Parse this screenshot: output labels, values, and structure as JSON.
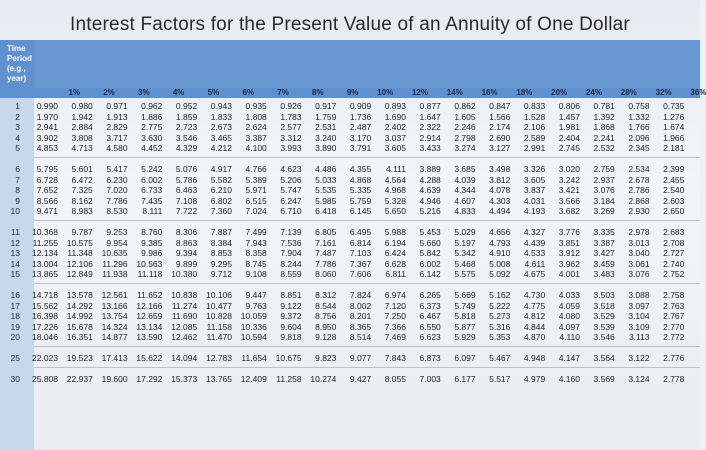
{
  "title": "Interest Factors for the Present Value of an Annuity of One Dollar",
  "header": {
    "label_lines": [
      "Time",
      "Period",
      "(e.g.,",
      "year)"
    ],
    "rates": [
      "1%",
      "2%",
      "3%",
      "4%",
      "5%",
      "6%",
      "7%",
      "8%",
      "9%",
      "10%",
      "12%",
      "14%",
      "16%",
      "18%",
      "20%",
      "24%",
      "28%",
      "32%",
      "36%"
    ]
  },
  "table": {
    "groups": [
      [
        {
          "period": "1",
          "values": [
            "0.990",
            "0.980",
            "0.971",
            "0.962",
            "0.952",
            "0.943",
            "0.935",
            "0.926",
            "0.917",
            "0.909",
            "0.893",
            "0.877",
            "0.862",
            "0.847",
            "0.833",
            "0.806",
            "0.781",
            "0.758",
            "0.735"
          ]
        },
        {
          "period": "2",
          "values": [
            "1.970",
            "1.942",
            "1.913",
            "1.886",
            "1.859",
            "1.833",
            "1.808",
            "1.783",
            "1.759",
            "1.736",
            "1.690",
            "1.647",
            "1.605",
            "1.566",
            "1.528",
            "1.457",
            "1.392",
            "1.332",
            "1.276"
          ]
        },
        {
          "period": "3",
          "values": [
            "2.941",
            "2.884",
            "2.829",
            "2.775",
            "2.723",
            "2.673",
            "2.624",
            "2.577",
            "2.531",
            "2.487",
            "2.402",
            "2.322",
            "2.246",
            "2.174",
            "2.106",
            "1.981",
            "1.868",
            "1.766",
            "1.674"
          ]
        },
        {
          "period": "4",
          "values": [
            "3.902",
            "3.808",
            "3.717",
            "3.630",
            "3.546",
            "3.465",
            "3.387",
            "3.312",
            "3.240",
            "3.170",
            "3.037",
            "2.914",
            "2.798",
            "2.690",
            "2.589",
            "2.404",
            "2.241",
            "2.096",
            "1.966"
          ]
        },
        {
          "period": "5",
          "values": [
            "4.853",
            "4.713",
            "4.580",
            "4.452",
            "4.329",
            "4.212",
            "4.100",
            "3.993",
            "3.890",
            "3.791",
            "3.605",
            "3.433",
            "3.274",
            "3.127",
            "2.991",
            "2.745",
            "2.532",
            "2.345",
            "2.181"
          ]
        }
      ],
      [
        {
          "period": "6",
          "values": [
            "5.795",
            "5.601",
            "5.417",
            "5.242",
            "5.076",
            "4.917",
            "4.766",
            "4.623",
            "4.486",
            "4.355",
            "4.111",
            "3.889",
            "3.685",
            "3.498",
            "3.326",
            "3.020",
            "2.759",
            "2.534",
            "2.399"
          ]
        },
        {
          "period": "7",
          "values": [
            "6.728",
            "6.472",
            "6.230",
            "6.002",
            "5.786",
            "5.582",
            "5.389",
            "5.206",
            "5.033",
            "4.868",
            "4.564",
            "4.288",
            "4.039",
            "3.812",
            "3.605",
            "3.242",
            "2.937",
            "2.678",
            "2.455"
          ]
        },
        {
          "period": "8",
          "values": [
            "7.652",
            "7.325",
            "7.020",
            "6.733",
            "6.463",
            "6.210",
            "5.971",
            "5.747",
            "5.535",
            "5.335",
            "4.968",
            "4.639",
            "4.344",
            "4.078",
            "3.837",
            "3.421",
            "3.076",
            "2.786",
            "2.540"
          ]
        },
        {
          "period": "9",
          "values": [
            "8.566",
            "8.162",
            "7.786",
            "7.435",
            "7.108",
            "6.802",
            "6.515",
            "6.247",
            "5.985",
            "5.759",
            "5.328",
            "4.946",
            "4.607",
            "4.303",
            "4.031",
            "3.566",
            "3.184",
            "2.868",
            "2.603"
          ]
        },
        {
          "period": "10",
          "values": [
            "9.471",
            "8.983",
            "8.530",
            "8.111",
            "7.722",
            "7.360",
            "7.024",
            "6.710",
            "6.418",
            "6.145",
            "5.650",
            "5.216",
            "4.833",
            "4.494",
            "4.193",
            "3.682",
            "3.269",
            "2.930",
            "2.650"
          ]
        }
      ],
      [
        {
          "period": "11",
          "values": [
            "10.368",
            "9.787",
            "9.253",
            "8.760",
            "8.306",
            "7.887",
            "7.499",
            "7.139",
            "6.805",
            "6.495",
            "5.988",
            "5.453",
            "5.029",
            "4.656",
            "4.327",
            "3.776",
            "3.335",
            "2.978",
            "2.683"
          ]
        },
        {
          "period": "12",
          "values": [
            "11.255",
            "10.575",
            "9.954",
            "9.385",
            "8.863",
            "8.384",
            "7.943",
            "7.536",
            "7.161",
            "6.814",
            "6.194",
            "5.660",
            "5.197",
            "4.793",
            "4.439",
            "3.851",
            "3.387",
            "3.013",
            "2.708"
          ]
        },
        {
          "period": "13",
          "values": [
            "12.134",
            "11.348",
            "10.635",
            "9.986",
            "9.394",
            "8.853",
            "8.358",
            "7.904",
            "7.487",
            "7.103",
            "6.424",
            "5.842",
            "5.342",
            "4.910",
            "4.533",
            "3.912",
            "3.427",
            "3.040",
            "2.727"
          ]
        },
        {
          "period": "14",
          "values": [
            "13.004",
            "12.106",
            "11.296",
            "10.563",
            "9.899",
            "9.295",
            "8.745",
            "8.244",
            "7.786",
            "7.367",
            "6.628",
            "6.002",
            "5.468",
            "5.008",
            "4.611",
            "3.962",
            "3.459",
            "3.061",
            "2.740"
          ]
        },
        {
          "period": "15",
          "values": [
            "13.865",
            "12.849",
            "11.938",
            "11.118",
            "10.380",
            "9.712",
            "9.108",
            "8.559",
            "8.060",
            "7.606",
            "6.811",
            "6.142",
            "5.575",
            "5.092",
            "4.675",
            "4.001",
            "3.483",
            "3.076",
            "2.752"
          ]
        }
      ],
      [
        {
          "period": "16",
          "values": [
            "14.718",
            "13.578",
            "12.561",
            "11.652",
            "10.838",
            "10.106",
            "9.447",
            "8.851",
            "8.312",
            "7.824",
            "6.974",
            "6.265",
            "5.669",
            "5.162",
            "4.730",
            "4.033",
            "3.503",
            "3.088",
            "2.758"
          ]
        },
        {
          "period": "17",
          "values": [
            "15.562",
            "14.292",
            "13.166",
            "12.166",
            "11.274",
            "10.477",
            "9.763",
            "9.122",
            "8.544",
            "8.002",
            "7.120",
            "6.373",
            "5.749",
            "5.222",
            "4.775",
            "4.059",
            "3.518",
            "3.097",
            "2.763"
          ]
        },
        {
          "period": "18",
          "values": [
            "16.398",
            "14.992",
            "13.754",
            "12.659",
            "11.690",
            "10.828",
            "10.059",
            "9.372",
            "8.756",
            "8.201",
            "7.250",
            "6.467",
            "5.818",
            "5.273",
            "4.812",
            "4.080",
            "3.529",
            "3.104",
            "2.767"
          ]
        },
        {
          "period": "19",
          "values": [
            "17.226",
            "15.678",
            "14.324",
            "13.134",
            "12.085",
            "11.158",
            "10.336",
            "9.604",
            "8.950",
            "8.365",
            "7.366",
            "6.550",
            "5.877",
            "5.316",
            "4.844",
            "4.097",
            "3.539",
            "3.109",
            "2.770"
          ]
        },
        {
          "period": "20",
          "values": [
            "18.046",
            "16.351",
            "14.877",
            "13.590",
            "12.462",
            "11.470",
            "10.594",
            "9.818",
            "9.128",
            "8.514",
            "7.469",
            "6.623",
            "5.929",
            "5.353",
            "4.870",
            "4.110",
            "3.546",
            "3.113",
            "2.772"
          ]
        }
      ],
      [
        {
          "period": "25",
          "values": [
            "22.023",
            "19.523",
            "17.413",
            "15.622",
            "14.094",
            "12.783",
            "11.654",
            "10.675",
            "9.823",
            "9.077",
            "7.843",
            "6.873",
            "6.097",
            "5.467",
            "4.948",
            "4.147",
            "3.564",
            "3.122",
            "2.776"
          ]
        }
      ],
      [
        {
          "period": "30",
          "values": [
            "25.808",
            "22.937",
            "19.600",
            "17.292",
            "15.373",
            "13.765",
            "12.409",
            "11.258",
            "10.274",
            "9.427",
            "8.055",
            "7.003",
            "6.177",
            "5.517",
            "4.979",
            "4.160",
            "3.569",
            "3.124",
            "2.778"
          ]
        }
      ]
    ]
  }
}
